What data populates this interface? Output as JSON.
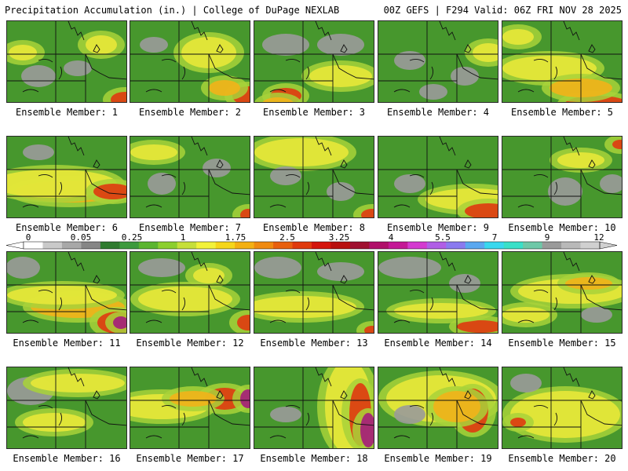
{
  "header": {
    "left": "Precipitation Accumulation (in.) | College of DuPage NEXLAB",
    "right": "00Z GEFS | F294 Valid: 06Z FRI NOV 28 2025"
  },
  "colorbar": {
    "tick_labels": [
      "0",
      "0.05",
      "0.25",
      "1",
      "1.75",
      "2.5",
      "3.25",
      "4",
      "5.5",
      "7",
      "9",
      "12"
    ],
    "colors": [
      "#ffffff",
      "#c9c9c9",
      "#a8a8a8",
      "#868686",
      "#2f7b2f",
      "#3d9a3d",
      "#5bb52f",
      "#8ccf2e",
      "#c6df3a",
      "#f2f23a",
      "#f5d61a",
      "#f3b012",
      "#ef8a10",
      "#e8600e",
      "#e03a0d",
      "#d4140c",
      "#b8100e",
      "#a01030",
      "#b0106a",
      "#c41896",
      "#d43ad0",
      "#b05ee6",
      "#8a7aef",
      "#5aa8f0",
      "#38d8ee",
      "#39e0c8",
      "#6ec8a8",
      "#9a9a9a",
      "#b8b8b8",
      "#d0d0d0"
    ]
  },
  "panels": [
    {
      "label": "Ensemble Member: 1"
    },
    {
      "label": "Ensemble Member: 2"
    },
    {
      "label": "Ensemble Member: 3"
    },
    {
      "label": "Ensemble Member: 4"
    },
    {
      "label": "Ensemble Member: 5"
    },
    {
      "label": "Ensemble Member: 6"
    },
    {
      "label": "Ensemble Member: 7"
    },
    {
      "label": "Ensemble Member: 8"
    },
    {
      "label": "Ensemble Member: 9"
    },
    {
      "label": "Ensemble Member: 10"
    },
    {
      "label": "Ensemble Member: 11"
    },
    {
      "label": "Ensemble Member: 12"
    },
    {
      "label": "Ensemble Member: 13"
    },
    {
      "label": "Ensemble Member: 14"
    },
    {
      "label": "Ensemble Member: 15"
    },
    {
      "label": "Ensemble Member: 16"
    },
    {
      "label": "Ensemble Member: 17"
    },
    {
      "label": "Ensemble Member: 18"
    },
    {
      "label": "Ensemble Member: 19"
    },
    {
      "label": "Ensemble Member: 20"
    }
  ]
}
